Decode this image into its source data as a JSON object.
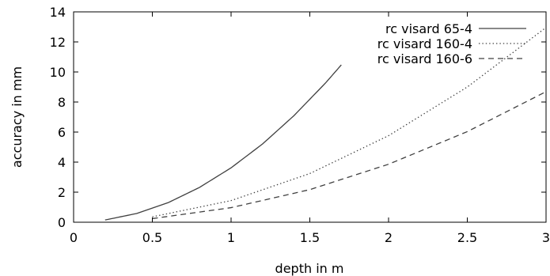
{
  "chart_data": {
    "type": "line",
    "xlabel": "depth in m",
    "ylabel": "accuracy in mm",
    "xlim": [
      0,
      3
    ],
    "ylim": [
      0,
      14
    ],
    "xticks": [
      0,
      0.5,
      1,
      1.5,
      2,
      2.5,
      3
    ],
    "yticks": [
      0,
      2,
      4,
      6,
      8,
      10,
      12,
      14
    ],
    "xtick_labels": [
      "0",
      "0.5",
      "1",
      "1.5",
      "2",
      "2.5",
      "3"
    ],
    "ytick_labels": [
      "0",
      "2",
      "4",
      "6",
      "8",
      "10",
      "12",
      "14"
    ],
    "grid": false,
    "legend_position": "top-right",
    "series": [
      {
        "name": "rc visard 65-4",
        "style": "solid",
        "x": [
          0.2,
          0.4,
          0.6,
          0.8,
          1.0,
          1.2,
          1.4,
          1.6,
          1.7
        ],
        "y": [
          0.15,
          0.58,
          1.3,
          2.32,
          3.62,
          5.21,
          7.1,
          9.27,
          10.47
        ]
      },
      {
        "name": "rc visard 160-4",
        "style": "dotted",
        "x": [
          0.5,
          1.0,
          1.5,
          2.0,
          2.5,
          3.0
        ],
        "y": [
          0.36,
          1.44,
          3.24,
          5.76,
          9.0,
          12.96
        ]
      },
      {
        "name": "rc visard 160-6",
        "style": "dashed",
        "x": [
          0.5,
          1.0,
          1.5,
          2.0,
          2.5,
          3.0
        ],
        "y": [
          0.24,
          0.97,
          2.17,
          3.86,
          6.03,
          8.69
        ]
      }
    ]
  }
}
